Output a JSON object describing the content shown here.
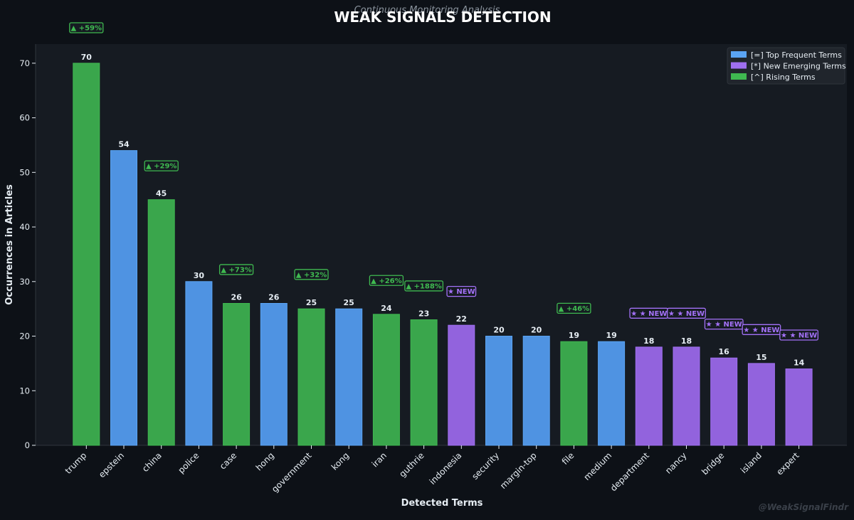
{
  "chart_data": {
    "type": "bar",
    "title": "WEAK SIGNALS DETECTION",
    "subtitle": "Continuous Monitoring Analysis",
    "xlabel": "Detected Terms",
    "ylabel": "Occurrences in Articles",
    "ylim": [
      0,
      73.5
    ],
    "yticks": [
      0,
      10,
      20,
      30,
      40,
      50,
      60,
      70
    ],
    "grid": false,
    "legend_position": "top-right",
    "watermark": "@WeakSignalFindr",
    "categories": [
      "trump",
      "epstein",
      "china",
      "police",
      "case",
      "hong",
      "government",
      "kong",
      "iran",
      "guthrie",
      "indonesia",
      "security",
      "margin-top",
      "file",
      "medium",
      "department",
      "nancy",
      "bridge",
      "island",
      "expert"
    ],
    "values": [
      70,
      54,
      45,
      30,
      26,
      26,
      25,
      25,
      24,
      23,
      22,
      20,
      20,
      19,
      19,
      18,
      18,
      16,
      15,
      14
    ],
    "groups": [
      "rising",
      "frequent",
      "rising",
      "frequent",
      "rising",
      "frequent",
      "rising",
      "frequent",
      "rising",
      "rising",
      "emerging",
      "frequent",
      "frequent",
      "rising",
      "frequent",
      "emerging",
      "emerging",
      "emerging",
      "emerging",
      "emerging"
    ],
    "badges": [
      "▲ +59%",
      "",
      "▲ +29%",
      "",
      "▲ +73%",
      "",
      "▲ +32%",
      "",
      "▲ +26%",
      "▲ +188%",
      "★ NEW",
      "",
      "",
      "▲ +46%",
      "",
      "★ ★ NEW",
      "★ ★ NEW",
      "★ ★ NEW",
      "★ ★ NEW",
      "★ ★ NEW"
    ],
    "badge_levels": [
      76.5,
      null,
      51.2,
      null,
      32.2,
      null,
      31.3,
      null,
      30.2,
      29.2,
      28.2,
      null,
      null,
      25.1,
      null,
      24.2,
      24.2,
      22.2,
      21.2,
      20.2
    ],
    "series": [
      {
        "key": "frequent",
        "name": "[=] Top Frequent Terms",
        "color": "#4f93e2",
        "legend_color": "#5aa4f4"
      },
      {
        "key": "emerging",
        "name": "[*] New Emerging Terms",
        "color": "#9263dd",
        "legend_color": "#9f6ff0"
      },
      {
        "key": "rising",
        "name": "[^] Rising Terms",
        "color": "#3aa64c",
        "legend_color": "#3fb850"
      }
    ],
    "colors": {
      "background": "#0d1117",
      "plot_background": "#161b22",
      "text": "#e6edf3",
      "muted": "#8b949e",
      "rising_badge": "#3fb950",
      "emerging_badge": "#a371f7"
    }
  }
}
